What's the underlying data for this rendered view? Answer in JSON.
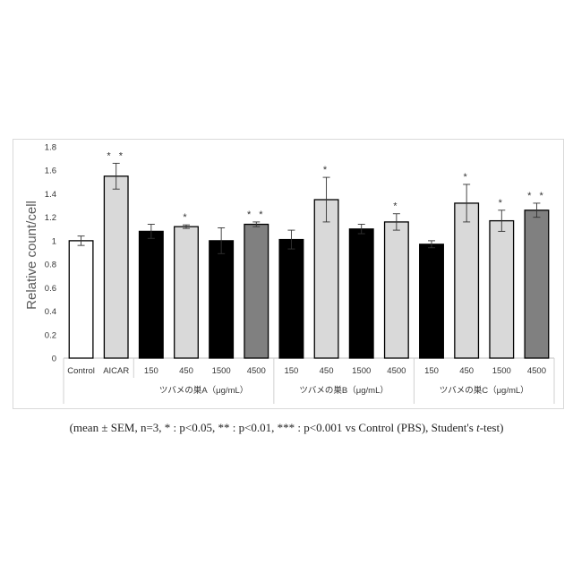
{
  "chart_data": {
    "type": "bar",
    "ylabel": "Relative count/cell",
    "ylim": [
      0,
      1.8
    ],
    "yticks": [
      "0",
      "0.2",
      "0.4",
      "0.6",
      "0.8",
      "1",
      "1.2",
      "1.4",
      "1.6",
      "1.8"
    ],
    "grid": false,
    "bars": [
      {
        "label": "Control",
        "value": 1.0,
        "err": 0.04,
        "sig": "",
        "color": "#ffffff"
      },
      {
        "label": "AICAR",
        "value": 1.55,
        "err": 0.11,
        "sig": "**",
        "color": "#d9d9d9"
      },
      {
        "label": "150",
        "value": 1.08,
        "err": 0.06,
        "sig": "",
        "color": "#000000"
      },
      {
        "label": "450",
        "value": 1.12,
        "err": 0.015,
        "sig": "*",
        "color": "#d9d9d9"
      },
      {
        "label": "1500",
        "value": 1.0,
        "err": 0.11,
        "sig": "",
        "color": "#000000"
      },
      {
        "label": "4500",
        "value": 1.14,
        "err": 0.02,
        "sig": "**",
        "color": "#808080"
      },
      {
        "label": "150",
        "value": 1.01,
        "err": 0.08,
        "sig": "",
        "color": "#000000"
      },
      {
        "label": "450",
        "value": 1.35,
        "err": 0.19,
        "sig": "*",
        "color": "#d9d9d9"
      },
      {
        "label": "1500",
        "value": 1.1,
        "err": 0.04,
        "sig": "",
        "color": "#000000"
      },
      {
        "label": "4500",
        "value": 1.16,
        "err": 0.07,
        "sig": "*",
        "color": "#d9d9d9"
      },
      {
        "label": "150",
        "value": 0.97,
        "err": 0.03,
        "sig": "",
        "color": "#000000"
      },
      {
        "label": "450",
        "value": 1.32,
        "err": 0.16,
        "sig": "*",
        "color": "#d9d9d9"
      },
      {
        "label": "1500",
        "value": 1.17,
        "err": 0.09,
        "sig": "*",
        "color": "#d9d9d9"
      },
      {
        "label": "4500",
        "value": 1.26,
        "err": 0.06,
        "sig": "**",
        "color": "#808080"
      }
    ],
    "groups": [
      {
        "label": "ツバメの巣A（μg/mL）",
        "start": 2,
        "end": 5
      },
      {
        "label": "ツバメの巣B（μg/mL）",
        "start": 6,
        "end": 9
      },
      {
        "label": "ツバメの巣C（μg/mL）",
        "start": 10,
        "end": 13
      }
    ]
  },
  "caption": {
    "prefix": "(mean ± SEM, n=3, * : p<0.05, ** : p<0.01, *** : p<0.001 vs Control (PBS), Student's ",
    "italic": "t",
    "suffix": "-test)"
  }
}
